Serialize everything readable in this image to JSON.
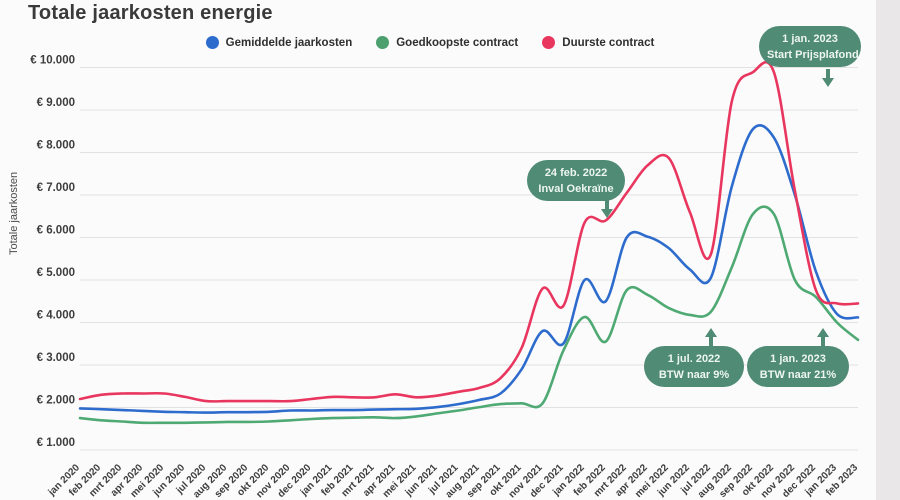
{
  "title": "Totale jaarkosten energie",
  "y_axis_title": "Totale jaarkosten",
  "legend": [
    {
      "label": "Gemiddelde jaarkosten",
      "color": "#2d6ccd"
    },
    {
      "label": "Goedkoopste contract",
      "color": "#4ca06e"
    },
    {
      "label": "Duurste contract",
      "color": "#e8365f"
    }
  ],
  "annotations": [
    {
      "line1": "24 feb. 2022",
      "line2": "Inval Oekraïne",
      "arrow_direction": "down"
    },
    {
      "line1": "1 jan. 2023",
      "line2": "Start Prijsplafond",
      "arrow_direction": "down"
    },
    {
      "line1": "1 jul. 2022",
      "line2": "BTW naar 9%",
      "arrow_direction": "up"
    },
    {
      "line1": "1 jan. 2023",
      "line2": "BTW naar 21%",
      "arrow_direction": "up"
    }
  ],
  "colors": {
    "annotation_pill": "#4f8b75",
    "gridline": "#e2e2e2",
    "axis_text": "#3d3d3d",
    "background": "#fbfbfb"
  },
  "chart_data": {
    "type": "line",
    "title": "Totale jaarkosten energie",
    "xlabel": "",
    "ylabel": "Totale jaarkosten",
    "ylim": [
      1000,
      10000
    ],
    "grid": true,
    "legend_position": "top",
    "yticks": [
      {
        "value": 1000,
        "label": "€ 1.000"
      },
      {
        "value": 2000,
        "label": "€ 2.000"
      },
      {
        "value": 3000,
        "label": "€ 3.000"
      },
      {
        "value": 4000,
        "label": "€ 4.000"
      },
      {
        "value": 5000,
        "label": "€ 5.000"
      },
      {
        "value": 6000,
        "label": "€ 6.000"
      },
      {
        "value": 7000,
        "label": "€ 7.000"
      },
      {
        "value": 8000,
        "label": "€ 8.000"
      },
      {
        "value": 9000,
        "label": "€ 9.000"
      },
      {
        "value": 10000,
        "label": "€ 10.000"
      }
    ],
    "x": [
      "jan 2020",
      "feb 2020",
      "mrt 2020",
      "apr 2020",
      "mei 2020",
      "jun 2020",
      "jul 2020",
      "aug 2020",
      "sep 2020",
      "okt 2020",
      "nov 2020",
      "dec 2020",
      "jan 2021",
      "feb 2021",
      "mrt 2021",
      "apr 2021",
      "mei 2021",
      "jun 2021",
      "jul 2021",
      "aug 2021",
      "sep 2021",
      "okt 2021",
      "nov 2021",
      "dec 2021",
      "jan 2022",
      "feb 2022",
      "mrt 2022",
      "apr 2022",
      "mei 2022",
      "jun 2022",
      "jul 2022",
      "aug 2022",
      "sep 2022",
      "okt 2022",
      "nov 2022",
      "dec 2022",
      "jan 2023",
      "feb 2023"
    ],
    "series": [
      {
        "name": "Gemiddelde jaarkosten",
        "color": "#2d6ccd",
        "values": [
          1980,
          1960,
          1940,
          1920,
          1900,
          1890,
          1880,
          1890,
          1890,
          1900,
          1930,
          1930,
          1940,
          1940,
          1950,
          1960,
          1970,
          2010,
          2080,
          2180,
          2330,
          2900,
          3800,
          3510,
          5000,
          4500,
          6000,
          6020,
          5750,
          5250,
          5050,
          7200,
          8550,
          8350,
          7000,
          5200,
          4200,
          4120
        ]
      },
      {
        "name": "Goedkoopste contract",
        "color": "#4ea973",
        "values": [
          1750,
          1700,
          1670,
          1640,
          1640,
          1640,
          1650,
          1660,
          1660,
          1670,
          1700,
          1730,
          1750,
          1760,
          1770,
          1750,
          1790,
          1860,
          1930,
          2010,
          2080,
          2100,
          2100,
          3350,
          4130,
          3550,
          4760,
          4650,
          4340,
          4180,
          4250,
          5300,
          6550,
          6550,
          5000,
          4600,
          4000,
          3590
        ]
      },
      {
        "name": "Duurste contract",
        "color": "#e8365f",
        "values": [
          2200,
          2300,
          2330,
          2330,
          2330,
          2250,
          2150,
          2150,
          2150,
          2150,
          2150,
          2200,
          2250,
          2240,
          2240,
          2310,
          2240,
          2280,
          2370,
          2460,
          2690,
          3400,
          4800,
          4400,
          6350,
          6400,
          7050,
          7700,
          7870,
          6600,
          5600,
          9200,
          9890,
          9890,
          7100,
          4760,
          4450,
          4450
        ]
      }
    ]
  }
}
